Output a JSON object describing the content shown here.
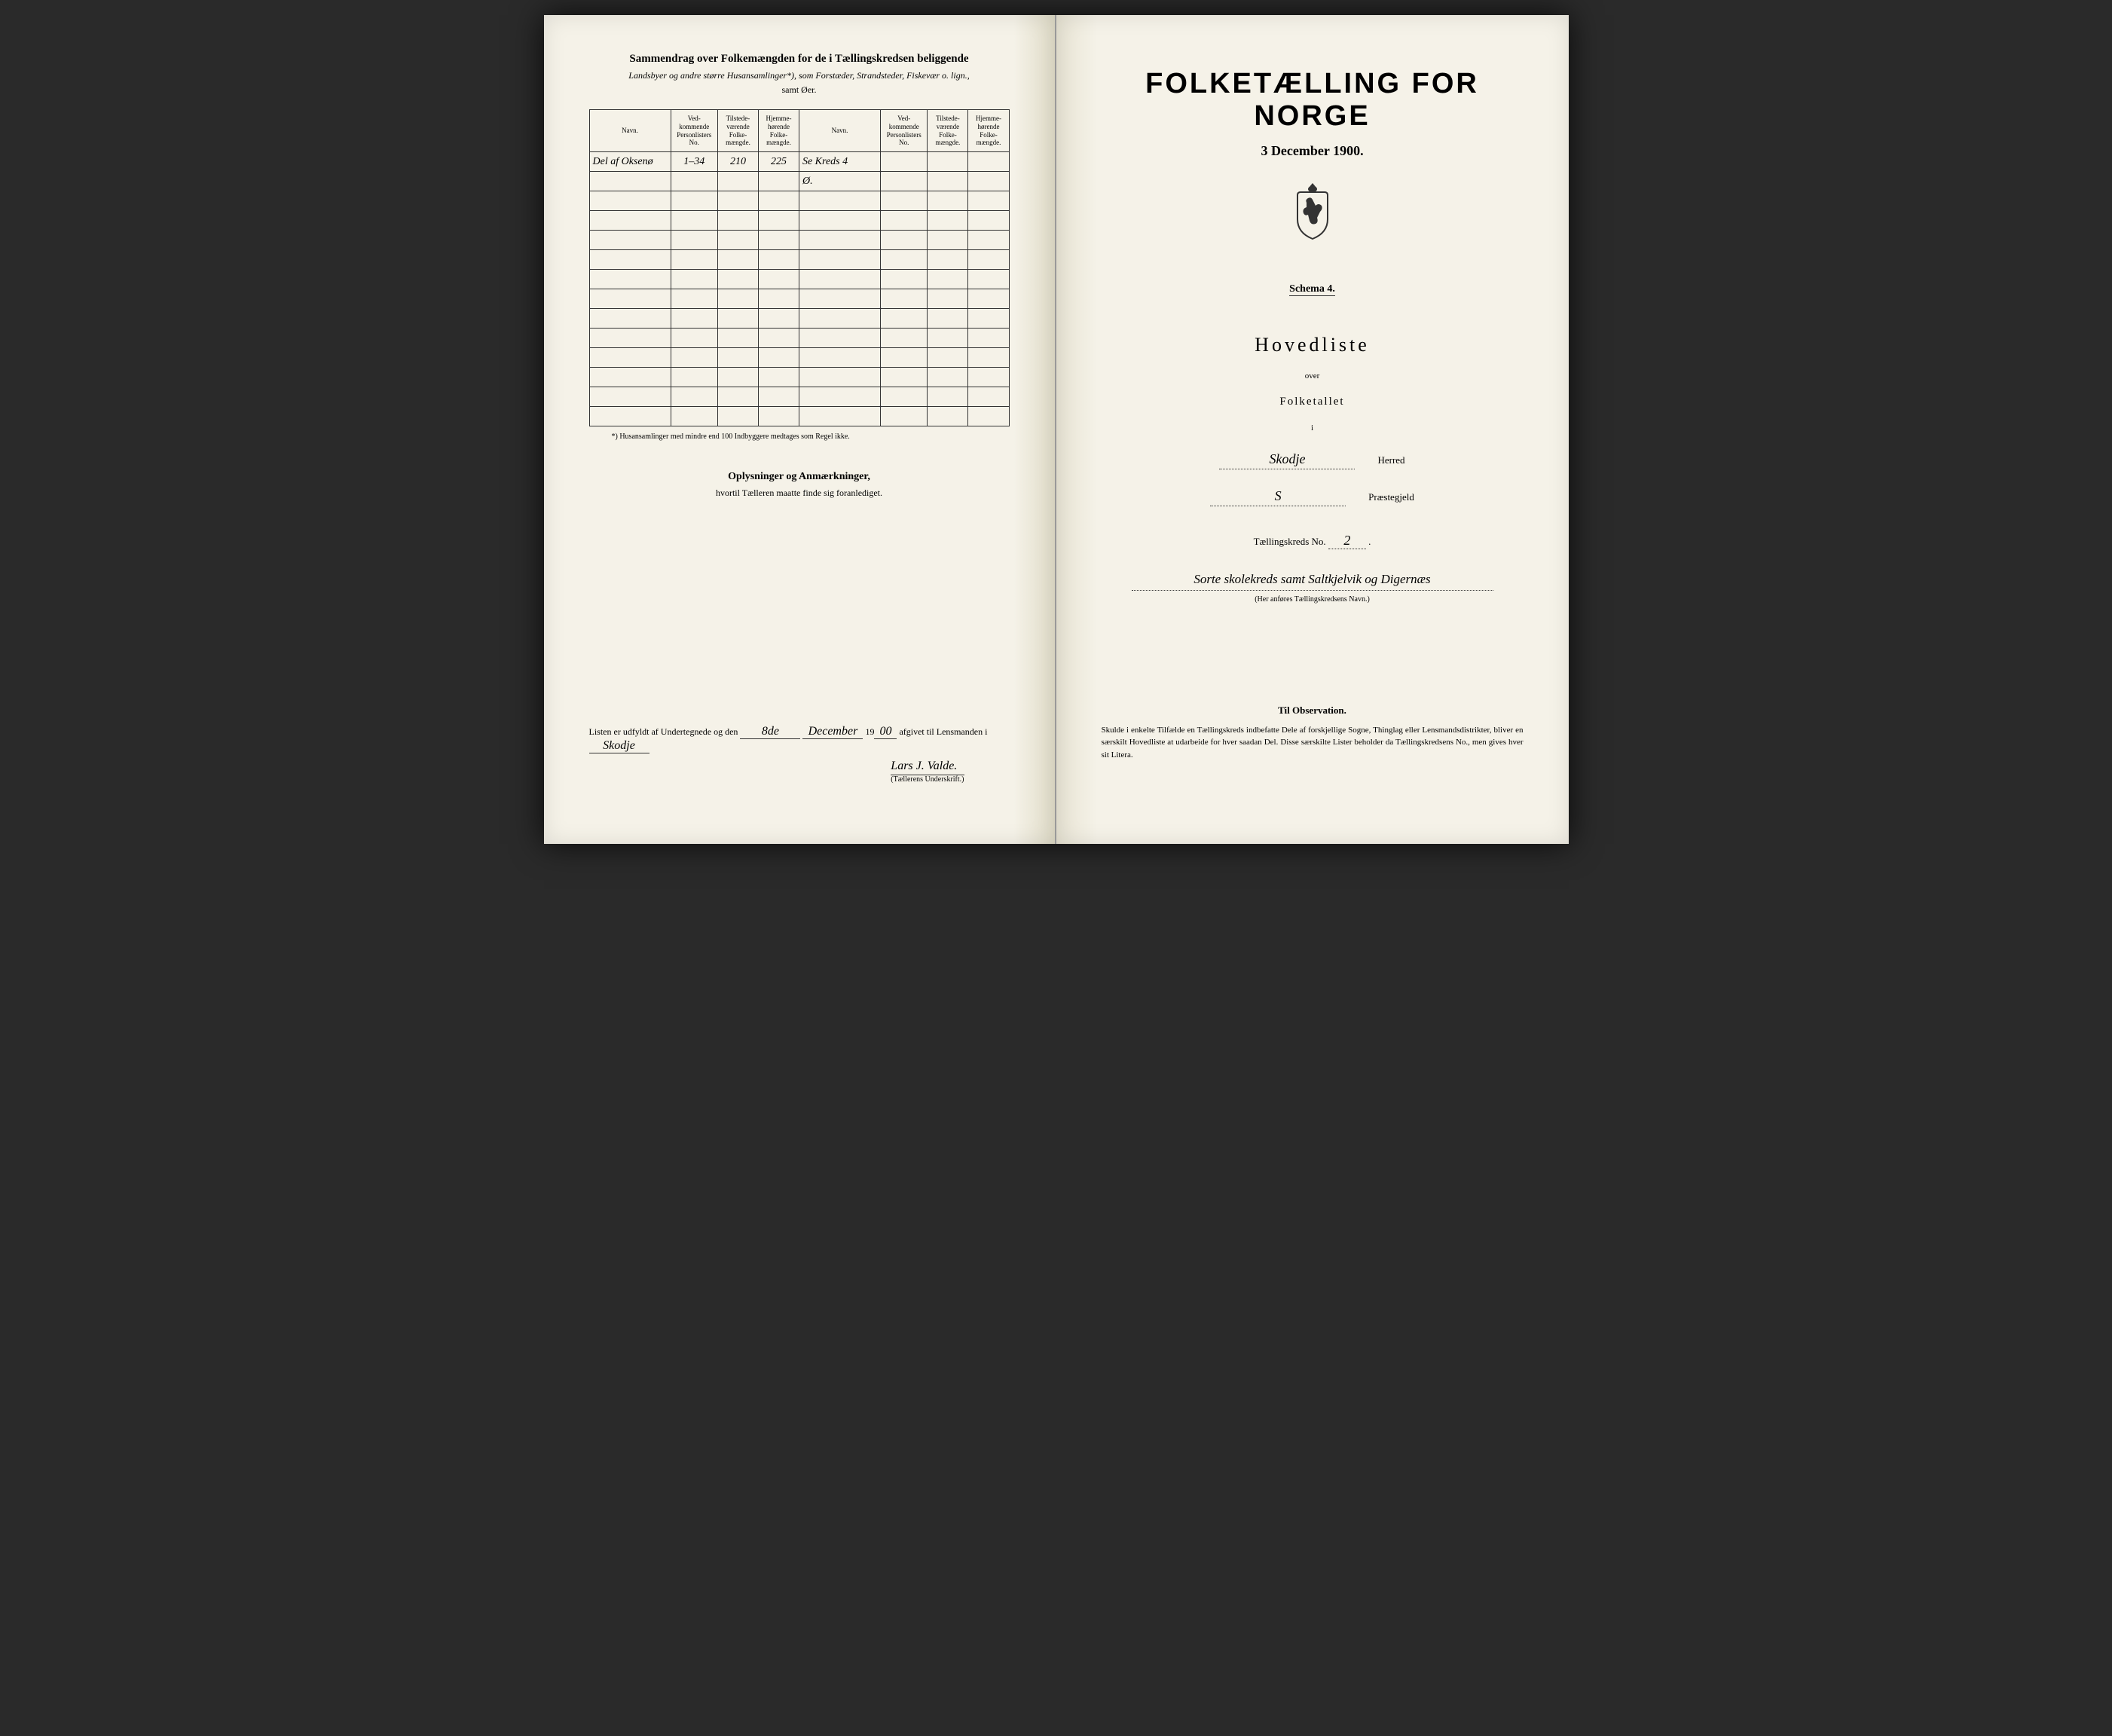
{
  "left_page": {
    "summary_title": "Sammendrag over Folkemængden for de i Tællingskredsen beliggende",
    "summary_subtitle": "Landsbyer og andre større Husansamlinger*), som Forstæder, Strandsteder, Fiskevær o. lign.,",
    "summary_subtitle2": "samt Øer.",
    "table_headers": {
      "navn": "Navn.",
      "vedkommende": "Ved-\nkommende\nPersonlisters\nNo.",
      "tilstede": "Tilstede-\nværende\nFolke-\nmængde.",
      "hjemme": "Hjemme-\nhørende\nFolke-\nmængde.",
      "navn2": "Navn.",
      "vedkommende2": "Ved-\nkommende\nPersonlisters\nNo.",
      "tilstede2": "Tilstede-\nværende\nFolke-\nmængde.",
      "hjemme2": "Hjemme-\nhørende\nFolke-\nmængde."
    },
    "rows": [
      {
        "navn": "Del af Oksenø",
        "no": "1–34",
        "tilstede": "210",
        "hjemme": "225",
        "navn2": "Se Kreds 4",
        "no2": "",
        "tilstede2": "",
        "hjemme2": ""
      },
      {
        "navn": "",
        "no": "",
        "tilstede": "",
        "hjemme": "",
        "navn2": "Ø.",
        "no2": "",
        "tilstede2": "",
        "hjemme2": ""
      }
    ],
    "empty_rows": 12,
    "footnote": "*) Husansamlinger med mindre end 100 Indbyggere medtages som Regel ikke.",
    "oplysninger_title": "Oplysninger og Anmærkninger,",
    "oplysninger_subtitle": "hvortil Tælleren maatte finde sig foranlediget.",
    "signature_prefix": "Listen er udfyldt af Undertegnede og den",
    "signature_date_day": "8de",
    "signature_date_month": "December",
    "signature_year_prefix": "19",
    "signature_year": "00",
    "signature_middle": "afgivet til Lensmanden i",
    "signature_place": "Skodje",
    "signature_name": "Lars J. Valde.",
    "signature_label": "(Tællerens Underskrift.)"
  },
  "right_page": {
    "main_title": "FOLKETÆLLING FOR NORGE",
    "date_line": "3 December 1900.",
    "schema": "Schema 4.",
    "hovedliste": "Hovedliste",
    "over": "over",
    "folketallet": "Folketallet",
    "i": "i",
    "herred_value": "Skodje",
    "herred_label": "Herred",
    "praestegjeld_value": "S",
    "praestegjeld_label": "Præstegjeld",
    "taellingskreds_label": "Tællingskreds No.",
    "taellingskreds_no": "2",
    "kreds_name": "Sorte skolekreds samt Saltkjelvik og Digernæs",
    "kreds_paren": "(Her anføres Tællingskredsens Navn.)",
    "obs_title": "Til Observation.",
    "obs_text": "Skulde i enkelte Tilfælde en Tællingskreds indbefatte Dele af forskjellige Sogne, Thinglag eller Lensmandsdistrikter, bliver en særskilt Hovedliste at udarbeide for hver saadan Del. Disse særskilte Lister beholder da Tællingskredsens No., men gives hver sit Litera."
  },
  "colors": {
    "paper": "#f5f2e8",
    "ink": "#1a1a1a",
    "border": "#333333"
  }
}
